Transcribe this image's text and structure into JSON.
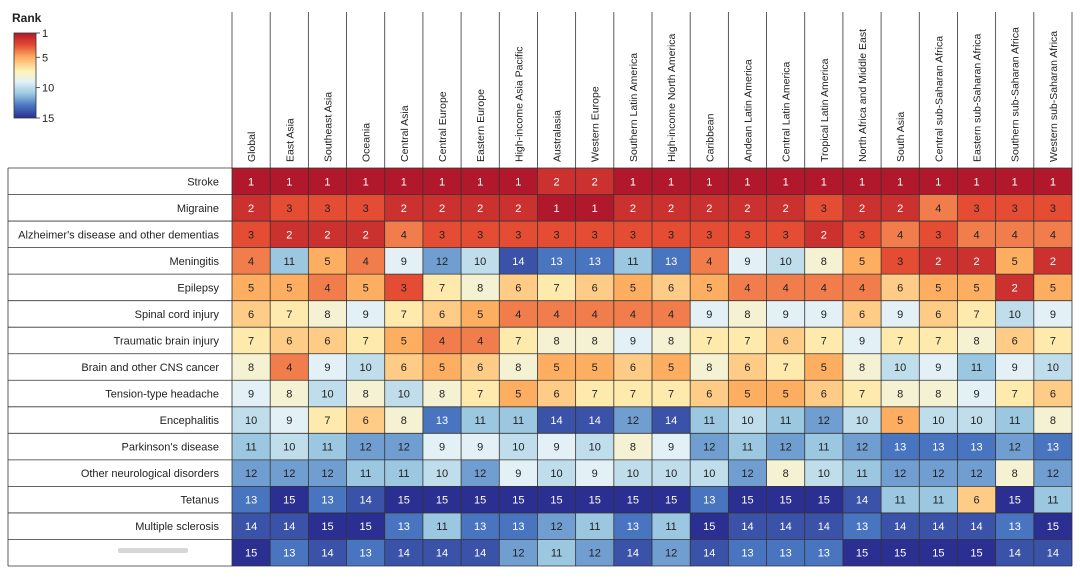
{
  "chart_data": {
    "type": "heatmap",
    "title": "",
    "legend": {
      "title": "Rank",
      "ticks": [
        "1",
        "5",
        "10",
        "15"
      ],
      "range": [
        1,
        15
      ],
      "placement": "top-left"
    },
    "columns": [
      "Global",
      "East Asia",
      "Southeast Asia",
      "Oceania",
      "Central Asia",
      "Central Europe",
      "Eastern Europe",
      "High-income Asia Pacific",
      "Australasia",
      "Western Europe",
      "Southern Latin America",
      "High-income North America",
      "Caribbean",
      "Andean Latin America",
      "Central Latin America",
      "Tropical Latin America",
      "North Africa and Middle East",
      "South Asia",
      "Central sub-Saharan Africa",
      "Eastern sub-Saharan Africa",
      "Southern sub-Saharan Africa",
      "Western sub-Saharan Africa"
    ],
    "rows": [
      "Stroke",
      "Migraine",
      "Alzheimer's disease and other dementias",
      "Meningitis",
      "Epilepsy",
      "Spinal cord injury",
      "Traumatic brain injury",
      "Brain and other CNS cancer",
      "Tension-type headache",
      "Encephalitis",
      "Parkinson's disease",
      "Other neurological disorders",
      "Tetanus",
      "Multiple sclerosis",
      ""
    ],
    "values": [
      [
        1,
        1,
        1,
        1,
        1,
        1,
        1,
        1,
        2,
        2,
        1,
        1,
        1,
        1,
        1,
        1,
        1,
        1,
        1,
        1,
        1,
        1
      ],
      [
        2,
        3,
        3,
        3,
        2,
        2,
        2,
        2,
        1,
        1,
        2,
        2,
        2,
        2,
        2,
        3,
        2,
        2,
        4,
        3,
        3,
        3
      ],
      [
        3,
        2,
        2,
        2,
        4,
        3,
        3,
        3,
        3,
        3,
        3,
        3,
        3,
        3,
        3,
        2,
        3,
        4,
        3,
        4,
        4,
        4
      ],
      [
        4,
        11,
        5,
        4,
        9,
        12,
        10,
        14,
        13,
        13,
        11,
        13,
        4,
        9,
        10,
        8,
        5,
        3,
        2,
        2,
        5,
        2
      ],
      [
        5,
        5,
        4,
        5,
        3,
        7,
        8,
        6,
        7,
        6,
        5,
        6,
        5,
        4,
        4,
        4,
        4,
        6,
        5,
        5,
        2,
        5
      ],
      [
        6,
        7,
        8,
        9,
        7,
        6,
        5,
        4,
        4,
        4,
        4,
        4,
        9,
        8,
        9,
        9,
        6,
        9,
        6,
        7,
        10,
        9
      ],
      [
        7,
        6,
        6,
        7,
        5,
        4,
        4,
        7,
        8,
        8,
        9,
        8,
        7,
        7,
        6,
        7,
        9,
        7,
        7,
        8,
        6,
        7
      ],
      [
        8,
        4,
        9,
        10,
        6,
        5,
        6,
        8,
        5,
        5,
        6,
        5,
        8,
        6,
        7,
        5,
        8,
        10,
        9,
        11,
        9,
        10
      ],
      [
        9,
        8,
        10,
        8,
        10,
        8,
        7,
        5,
        6,
        7,
        7,
        7,
        6,
        5,
        5,
        6,
        7,
        8,
        8,
        9,
        7,
        6
      ],
      [
        10,
        9,
        7,
        6,
        8,
        13,
        11,
        11,
        14,
        14,
        12,
        14,
        11,
        10,
        11,
        12,
        10,
        5,
        10,
        10,
        11,
        8
      ],
      [
        11,
        10,
        11,
        12,
        12,
        9,
        9,
        10,
        9,
        10,
        8,
        9,
        12,
        11,
        12,
        11,
        12,
        13,
        13,
        13,
        12,
        13
      ],
      [
        12,
        12,
        12,
        11,
        11,
        10,
        12,
        9,
        10,
        9,
        10,
        10,
        10,
        12,
        8,
        10,
        11,
        12,
        12,
        12,
        8,
        12
      ],
      [
        13,
        15,
        13,
        14,
        15,
        15,
        15,
        15,
        15,
        15,
        15,
        15,
        13,
        15,
        15,
        15,
        14,
        11,
        11,
        6,
        15,
        11
      ],
      [
        14,
        14,
        15,
        15,
        13,
        11,
        13,
        13,
        12,
        11,
        13,
        11,
        15,
        14,
        14,
        14,
        13,
        14,
        14,
        14,
        13,
        15
      ],
      [
        15,
        13,
        14,
        13,
        14,
        14,
        14,
        12,
        11,
        12,
        14,
        12,
        14,
        13,
        13,
        13,
        15,
        15,
        15,
        15,
        14,
        14
      ]
    ]
  }
}
